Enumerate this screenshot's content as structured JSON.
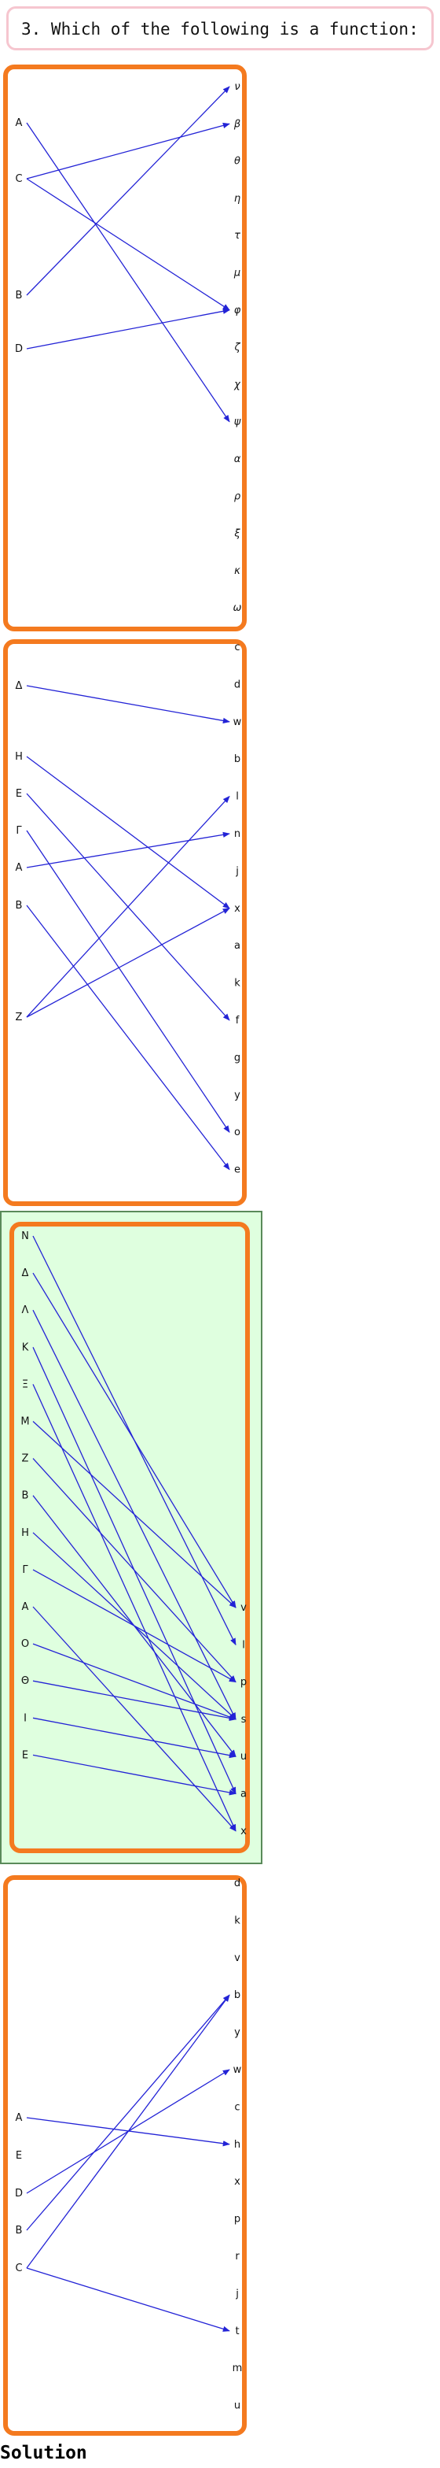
{
  "question": {
    "text": "3. Which of the following is a function:"
  },
  "options": [
    {
      "id": "option-1",
      "selected": false,
      "domain": [
        "A",
        "C",
        "B",
        "D"
      ],
      "codomain": [
        "ν",
        "β",
        "θ",
        "η",
        "τ",
        "μ",
        "φ",
        "ζ",
        "χ",
        "ψ",
        "α",
        "ρ",
        "ξ",
        "κ",
        "ω"
      ],
      "arrows": [
        [
          "A",
          "ψ"
        ],
        [
          "C",
          "β"
        ],
        [
          "C",
          "φ"
        ],
        [
          "B",
          "ν"
        ],
        [
          "D",
          "φ"
        ]
      ]
    },
    {
      "id": "option-2",
      "selected": false,
      "domain": [
        "Δ",
        "H",
        "E",
        "Γ",
        "A",
        "B",
        "Z"
      ],
      "codomain": [
        "c",
        "d",
        "w",
        "b",
        "l",
        "n",
        "j",
        "x",
        "a",
        "k",
        "f",
        "g",
        "y",
        "o",
        "e"
      ],
      "arrows": [
        [
          "Δ",
          "w"
        ],
        [
          "H",
          "x"
        ],
        [
          "E",
          "f"
        ],
        [
          "Γ",
          "o"
        ],
        [
          "A",
          "n"
        ],
        [
          "B",
          "e"
        ],
        [
          "Z",
          "l"
        ],
        [
          "Z",
          "x"
        ]
      ]
    },
    {
      "id": "option-3",
      "selected": true,
      "domain": [
        "N",
        "Δ",
        "Λ",
        "K",
        "Ξ",
        "M",
        "Z",
        "B",
        "H",
        "Γ",
        "A",
        "O",
        "Θ",
        "I",
        "E"
      ],
      "codomain": [
        "v",
        "l",
        "p",
        "s",
        "u",
        "a",
        "x"
      ],
      "arrows": [
        [
          "N",
          "l"
        ],
        [
          "Δ",
          "v"
        ],
        [
          "Λ",
          "s"
        ],
        [
          "K",
          "a"
        ],
        [
          "Ξ",
          "x"
        ],
        [
          "M",
          "v"
        ],
        [
          "Z",
          "p"
        ],
        [
          "B",
          "u"
        ],
        [
          "H",
          "s"
        ],
        [
          "Γ",
          "p"
        ],
        [
          "A",
          "x"
        ],
        [
          "O",
          "s"
        ],
        [
          "Θ",
          "s"
        ],
        [
          "I",
          "u"
        ],
        [
          "E",
          "a"
        ]
      ]
    },
    {
      "id": "option-4",
      "selected": false,
      "domain": [
        "A",
        "E",
        "D",
        "B",
        "C"
      ],
      "codomain": [
        "d",
        "k",
        "v",
        "b",
        "y",
        "w",
        "c",
        "h",
        "x",
        "p",
        "r",
        "j",
        "t",
        "m",
        "u"
      ],
      "arrows": [
        [
          "A",
          "h"
        ],
        [
          "D",
          "w"
        ],
        [
          "B",
          "b"
        ],
        [
          "C",
          "b"
        ],
        [
          "C",
          "t"
        ]
      ]
    }
  ],
  "solution": {
    "label": "Solution"
  },
  "colors": {
    "arrow": "#2323d6",
    "panel_border": "#f47a1f",
    "selected_fill": "#dfffdf",
    "question_border": "#f6c6cf"
  }
}
